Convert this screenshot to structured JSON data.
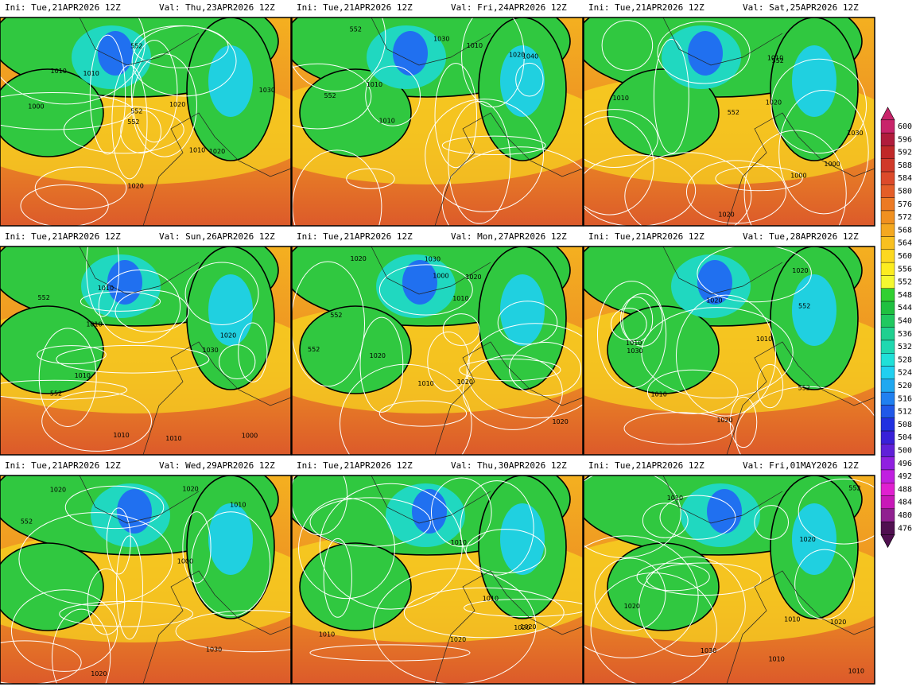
{
  "panels": [
    {
      "ini": "Ini: Tue,21APR2026 12Z",
      "val": "Val: Thu,23APR2026 12Z",
      "contour_labels": [
        "1020",
        "1020",
        "1010",
        "552",
        "1000",
        "1010",
        "1030",
        "552",
        "1020",
        "552",
        "1010"
      ]
    },
    {
      "ini": "Ini: Tue,21APR2026 12Z",
      "val": "Val: Fri,24APR2026 12Z",
      "contour_labels": [
        "1040",
        "1030",
        "1010",
        "552",
        "1010",
        "1020",
        "552",
        "1010"
      ]
    },
    {
      "ini": "Ini: Tue,21APR2026 12Z",
      "val": "Val: Sat,25APR2026 12Z",
      "contour_labels": [
        "1030",
        "1020",
        "1000",
        "552",
        "1000",
        "1010",
        "1020",
        "1010",
        "552"
      ]
    },
    {
      "ini": "Ini: Tue,21APR2026 12Z",
      "val": "Val: Sun,26APR2026 12Z",
      "contour_labels": [
        "1030",
        "1010",
        "1000",
        "1010",
        "1020",
        "552",
        "552",
        "1010",
        "1010",
        "1010"
      ]
    },
    {
      "ini": "Ini: Tue,21APR2026 12Z",
      "val": "Val: Mon,27APR2026 12Z",
      "contour_labels": [
        "1020",
        "1010",
        "1020",
        "1000",
        "552",
        "1030",
        "1020",
        "552",
        "1010",
        "1020",
        "1020"
      ]
    },
    {
      "ini": "Ini: Tue,21APR2026 12Z",
      "val": "Val: Tue,28APR2026 12Z",
      "contour_labels": [
        "552",
        "1010",
        "1020",
        "1030",
        "1020",
        "552",
        "1010",
        "1010",
        "1020"
      ]
    },
    {
      "ini": "Ini: Tue,21APR2026 12Z",
      "val": "Val: Wed,29APR2026 12Z",
      "contour_labels": [
        "1000",
        "1010",
        "1020",
        "1030",
        "1020",
        "552",
        "1020"
      ]
    },
    {
      "ini": "Ini: Tue,21APR2026 12Z",
      "val": "Val: Thu,30APR2026 12Z",
      "contour_labels": [
        "1020",
        "1010",
        "1020",
        "1020",
        "1010",
        "1010"
      ]
    },
    {
      "ini": "Ini: Tue,21APR2026 12Z",
      "val": "Val: Fri,01MAY2026 12Z",
      "contour_labels": [
        "1020",
        "1030",
        "1010",
        "552",
        "1020",
        "1010",
        "1010",
        "1020",
        "1010"
      ]
    }
  ],
  "colorbar": {
    "values": [
      600,
      596,
      592,
      588,
      584,
      580,
      576,
      572,
      568,
      564,
      560,
      556,
      552,
      548,
      544,
      540,
      536,
      532,
      528,
      524,
      520,
      516,
      512,
      508,
      504,
      500,
      496,
      492,
      488,
      484,
      480,
      476
    ],
    "colors": [
      "#c8246a",
      "#b01c3c",
      "#c02828",
      "#d03a2a",
      "#dc4a2a",
      "#e45e28",
      "#ec7a24",
      "#f09020",
      "#f4a820",
      "#f8c020",
      "#fcd820",
      "#fcec20",
      "#f4f830",
      "#30d030",
      "#20c040",
      "#20c860",
      "#20d090",
      "#20d8b0",
      "#20e0d8",
      "#20d0f0",
      "#20a8f0",
      "#2080f0",
      "#2058e8",
      "#2030e0",
      "#3820d8",
      "#6020d8",
      "#9020e0",
      "#c020e0",
      "#e020d0",
      "#c818b8",
      "#902090",
      "#501050"
    ]
  }
}
